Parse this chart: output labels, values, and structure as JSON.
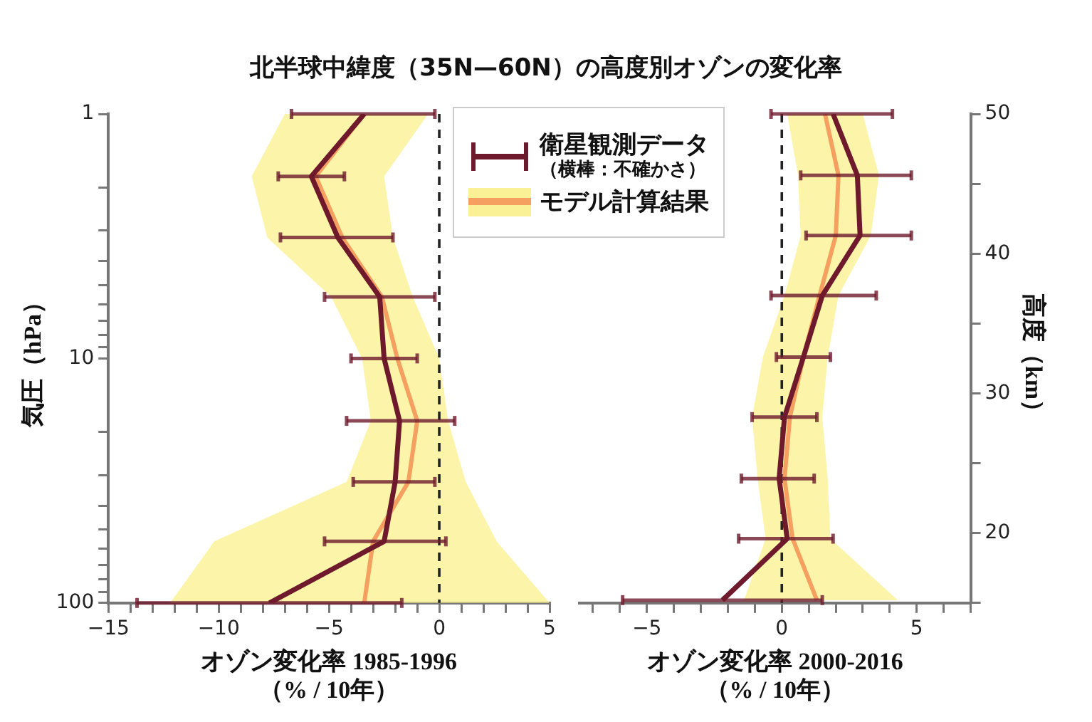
{
  "chart_data": [
    {
      "type": "line",
      "title": "北半球中緯度（35N—60N）の高度別オゾンの変化率",
      "xlabel": "オゾン変化率 1985-1996\n（% / 10年）",
      "ylabel": "気圧（hPa）",
      "orientation": "horizontal",
      "x": [
        1,
        1.8,
        3.2,
        5.6,
        10,
        18,
        32,
        56,
        100
      ],
      "series": [
        {
          "name": "衛星観測データ",
          "color": "#6e1a2c",
          "values": [
            -3.4,
            -5.8,
            -4.6,
            -2.7,
            -2.5,
            -1.8,
            -2.0,
            -2.5,
            -7.7
          ],
          "errors": [
            [
              -6.7,
              -0.2
            ],
            [
              -7.3,
              -4.3
            ],
            [
              -7.2,
              -2.1
            ],
            [
              -5.2,
              -0.2
            ],
            [
              -4.0,
              -1.0
            ],
            [
              -4.2,
              0.7
            ],
            [
              -3.9,
              -0.2
            ],
            [
              -5.2,
              0.3
            ],
            [
              -13.7,
              -1.7
            ]
          ]
        },
        {
          "name": "モデル計算結果",
          "color": "#f5a060",
          "values": [
            -3.4,
            -5.6,
            -4.4,
            -2.6,
            -1.9,
            -1.0,
            -1.4,
            -3.0,
            -3.4
          ],
          "lower": [
            -7.0,
            -8.5,
            -7.8,
            -4.9,
            -3.5,
            -3.1,
            -4.2,
            -10.2,
            -12.2
          ],
          "upper": [
            -0.5,
            -2.5,
            -2.1,
            -1.2,
            0,
            0.4,
            1.2,
            2.6,
            5
          ]
        }
      ],
      "xlim": [
        -15,
        5
      ],
      "xticks": [
        -15,
        {
          "value": -14,
          "label": null
        },
        {
          "value": -13,
          "label": null
        },
        {
          "value": -12,
          "label": null
        },
        {
          "value": -11,
          "label": null
        },
        -10,
        {
          "value": -9,
          "label": null
        },
        {
          "value": -8,
          "label": null
        },
        {
          "value": -7,
          "label": null
        },
        {
          "value": -6,
          "label": null
        },
        -5,
        {
          "value": -4,
          "label": null
        },
        {
          "value": -3,
          "label": null
        },
        {
          "value": -2,
          "label": null
        },
        {
          "value": -1,
          "label": null
        },
        0,
        {
          "value": 1,
          "label": null
        },
        {
          "value": 2,
          "label": null
        },
        {
          "value": 3,
          "label": null
        },
        {
          "value": 4,
          "label": null
        },
        5
      ],
      "ylim": [
        100,
        1
      ],
      "yticks": [
        1,
        {
          "value": 2,
          "label": null
        },
        {
          "value": 3,
          "label": null
        },
        {
          "value": 4,
          "label": null
        },
        {
          "value": 5,
          "label": null
        },
        {
          "value": 6,
          "label": null
        },
        {
          "value": 7,
          "label": null
        },
        {
          "value": 8,
          "label": null
        },
        {
          "value": 9,
          "label": null
        },
        10,
        {
          "value": 20,
          "label": null
        },
        {
          "value": 30,
          "label": null
        },
        {
          "value": 40,
          "label": null
        },
        {
          "value": 50,
          "label": null
        },
        {
          "value": 60,
          "label": null
        },
        {
          "value": 70,
          "label": null
        },
        {
          "value": 80,
          "label": null
        },
        {
          "value": 90,
          "label": null
        },
        100
      ],
      "log": "y",
      "grid": false,
      "legend": "top right",
      "marker": "none",
      "annotations": [
        "（横棒：不確かさ）"
      ],
      "ref_lines": [
        {
          "axis": "x",
          "value": 0,
          "color": "#222222",
          "line_style": "dashed"
        }
      ]
    },
    {
      "type": "line",
      "xlabel": "オゾン変化率 2000-2016\n（% / 10年）",
      "ylabel": "高度（km）",
      "orientation": "horizontal",
      "x": [
        50,
        45.6,
        41.3,
        37,
        32.6,
        28.3,
        23.9,
        19.6,
        15.2
      ],
      "series": [
        {
          "color": "#6e1a2c",
          "values": [
            1.9,
            2.8,
            2.9,
            1.5,
            0.8,
            0.1,
            -0.1,
            0.2,
            -2.2
          ],
          "errors": [
            [
              -0.4,
              4.1
            ],
            [
              0.7,
              4.8
            ],
            [
              0.9,
              4.8
            ],
            [
              -0.4,
              3.5
            ],
            [
              -0.2,
              1.8
            ],
            [
              -1.1,
              1.3
            ],
            [
              -1.5,
              1.2
            ],
            [
              -1.6,
              1.9
            ],
            [
              -5.9,
              1.5
            ]
          ]
        },
        {
          "color": "#f5a060",
          "values": [
            1.6,
            2.1,
            2.0,
            1.4,
            0.8,
            0.3,
            0.1,
            0.4,
            1.3
          ],
          "lower": [
            0.2,
            0.6,
            0.7,
            0.1,
            -0.7,
            -1.1,
            -0.9,
            -0.6,
            -1.4
          ],
          "upper": [
            3.0,
            3.6,
            3.3,
            2.1,
            1.7,
            1.5,
            1.7,
            1.8,
            4.3
          ]
        }
      ],
      "xlim": [
        -7.5,
        7
      ],
      "xticks": [
        {
          "value": -7,
          "label": null
        },
        {
          "value": -6,
          "label": null
        },
        -5,
        {
          "value": -4,
          "label": null
        },
        {
          "value": -3,
          "label": null
        },
        {
          "value": -2,
          "label": null
        },
        {
          "value": -1,
          "label": null
        },
        0,
        {
          "value": 1,
          "label": null
        },
        {
          "value": 2,
          "label": null
        },
        {
          "value": 3,
          "label": null
        },
        {
          "value": 4,
          "label": null
        },
        5,
        {
          "value": 6,
          "label": null
        },
        {
          "value": 7,
          "label": null
        }
      ],
      "ylim": [
        15,
        50
      ],
      "yticks": [
        {
          "value": 15,
          "label": null
        },
        20,
        {
          "value": 25,
          "label": null
        },
        30,
        {
          "value": 35,
          "label": null
        },
        40,
        {
          "value": 45,
          "label": null
        },
        50
      ],
      "grid": false,
      "marker": "none",
      "ref_lines": [
        {
          "axis": "x",
          "value": 0,
          "color": "#222222",
          "line_style": "dashed"
        }
      ]
    }
  ]
}
